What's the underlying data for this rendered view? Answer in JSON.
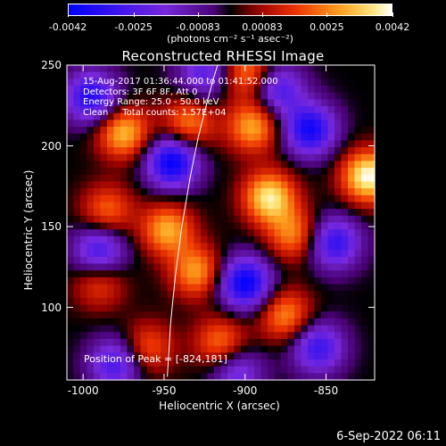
{
  "chart_data": {
    "type": "heatmap",
    "title": "Reconstructed RHESSI Image",
    "xlabel": "Heliocentric X (arcsec)",
    "ylabel": "Heliocentric Y (arcsec)",
    "xlim": [
      -1010,
      -820
    ],
    "ylim": [
      55,
      250
    ],
    "x_ticks": [
      "-1000",
      "-950",
      "-900",
      "-850"
    ],
    "x_tick_values": [
      -1000,
      -950,
      -900,
      -850
    ],
    "y_ticks": [
      "250",
      "200",
      "150",
      "100"
    ],
    "y_tick_values": [
      250,
      200,
      150,
      100
    ],
    "colorbar": {
      "ticks": [
        "-0.0042",
        "-0.0025",
        "-0.00083",
        "0.00083",
        "0.0025",
        "0.0042"
      ],
      "tick_values": [
        -0.0042,
        -0.0025,
        -0.00083,
        0.00083,
        0.0025,
        0.0042
      ],
      "range": [
        -0.0042,
        0.0042
      ],
      "units_label": "(photons cm⁻² s⁻¹ asec⁻²)"
    },
    "annotations": [
      "15-Aug-2017 01:36:44.000 to 01:41:52.000",
      "Detectors: 3F 6F 8F, Att 0",
      "Energy Range: 25.0 - 50.0 keV",
      "Clean     Total counts: 1.57E+04"
    ],
    "peak_label": "Position of Peak = [-824,181]",
    "peak_position": [
      -824,
      181
    ],
    "limb_curve": {
      "x": [
        -948,
        -946,
        -943,
        -939,
        -934,
        -929,
        -924,
        -920,
        -917
      ],
      "y": [
        57,
        90,
        120,
        150,
        180,
        205,
        225,
        240,
        250
      ]
    },
    "intensity_hotspots": [
      {
        "x": -824,
        "y": 181,
        "level": 0.0042
      },
      {
        "x": -975,
        "y": 208,
        "level": 0.0032
      },
      {
        "x": -935,
        "y": 214,
        "level": 0.0025
      },
      {
        "x": -895,
        "y": 212,
        "level": 0.003
      },
      {
        "x": -898,
        "y": 245,
        "level": 0.0026
      },
      {
        "x": -885,
        "y": 168,
        "level": 0.0038
      },
      {
        "x": -870,
        "y": 145,
        "level": 0.0025
      },
      {
        "x": -948,
        "y": 148,
        "level": 0.003
      },
      {
        "x": -985,
        "y": 160,
        "level": 0.0022
      },
      {
        "x": -930,
        "y": 122,
        "level": 0.0028
      },
      {
        "x": -915,
        "y": 78,
        "level": 0.0024
      },
      {
        "x": -875,
        "y": 95,
        "level": 0.0026
      },
      {
        "x": -990,
        "y": 115,
        "level": 0.0018
      },
      {
        "x": -960,
        "y": 75,
        "level": 0.002
      }
    ],
    "intensity_holes": [
      {
        "x": -945,
        "y": 190,
        "level": -0.0042
      },
      {
        "x": -900,
        "y": 115,
        "level": -0.0042
      },
      {
        "x": -860,
        "y": 210,
        "level": -0.0038
      },
      {
        "x": -995,
        "y": 230,
        "level": -0.0035
      },
      {
        "x": -990,
        "y": 135,
        "level": -0.003
      },
      {
        "x": -845,
        "y": 140,
        "level": -0.0032
      },
      {
        "x": -980,
        "y": 65,
        "level": -0.0028
      },
      {
        "x": -880,
        "y": 235,
        "level": -0.0028
      },
      {
        "x": -855,
        "y": 75,
        "level": -0.003
      },
      {
        "x": -925,
        "y": 245,
        "level": -0.0024
      },
      {
        "x": -905,
        "y": 60,
        "level": -0.0022
      }
    ]
  },
  "footer": {
    "date": "6-Sep-2022 06:11"
  }
}
